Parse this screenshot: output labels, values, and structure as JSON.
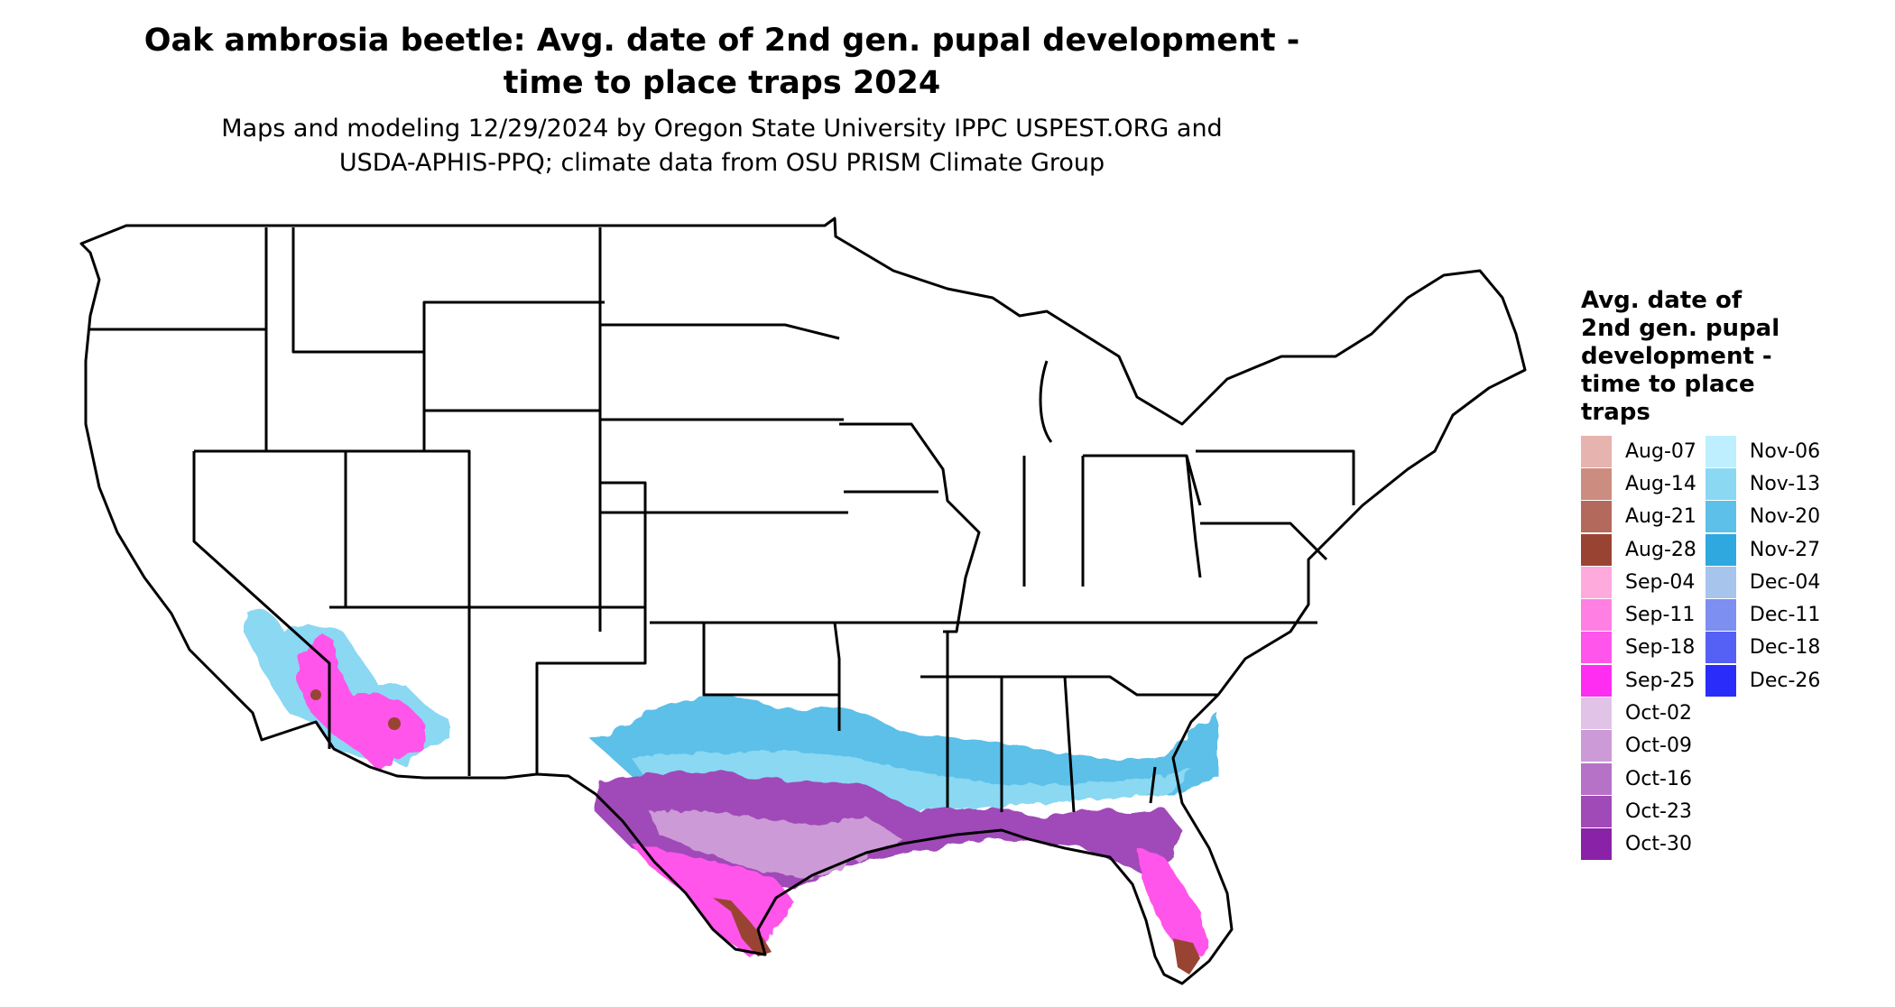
{
  "title_line1": "Oak ambrosia beetle: Avg. date of 2nd gen. pupal development -",
  "title_line2": "time to place traps 2024",
  "subtitle_line1": "Maps and modeling 12/29/2024 by Oregon State University IPPC USPEST.ORG and",
  "subtitle_line2": "USDA-APHIS-PPQ; climate data from OSU PRISM Climate Group",
  "legend": {
    "title_lines": [
      "Avg. date of",
      "2nd gen. pupal",
      "development -",
      "time to place",
      "traps"
    ],
    "items": [
      {
        "label": "Aug-07",
        "color": "#e6b3ae"
      },
      {
        "label": "Aug-14",
        "color": "#cc8c80"
      },
      {
        "label": "Aug-21",
        "color": "#b36a5c"
      },
      {
        "label": "Aug-28",
        "color": "#994433"
      },
      {
        "label": "Sep-04",
        "color": "#ffaadd"
      },
      {
        "label": "Sep-11",
        "color": "#ff7fe3"
      },
      {
        "label": "Sep-18",
        "color": "#ff55ea"
      },
      {
        "label": "Sep-25",
        "color": "#ff2cf2"
      },
      {
        "label": "Oct-02",
        "color": "#e2c3e8"
      },
      {
        "label": "Oct-09",
        "color": "#cc9ad6"
      },
      {
        "label": "Oct-16",
        "color": "#b672c7"
      },
      {
        "label": "Oct-23",
        "color": "#a04ab8"
      },
      {
        "label": "Oct-30",
        "color": "#8a22a8"
      },
      {
        "label": "Nov-06",
        "color": "#bdefff"
      },
      {
        "label": "Nov-13",
        "color": "#8ad8f2"
      },
      {
        "label": "Nov-20",
        "color": "#5cc0e8"
      },
      {
        "label": "Nov-27",
        "color": "#2ea8df"
      },
      {
        "label": "Dec-04",
        "color": "#a7c4ec"
      },
      {
        "label": "Dec-11",
        "color": "#7d8ff0"
      },
      {
        "label": "Dec-18",
        "color": "#5560f5"
      },
      {
        "label": "Dec-26",
        "color": "#2a2cfa"
      }
    ]
  }
}
